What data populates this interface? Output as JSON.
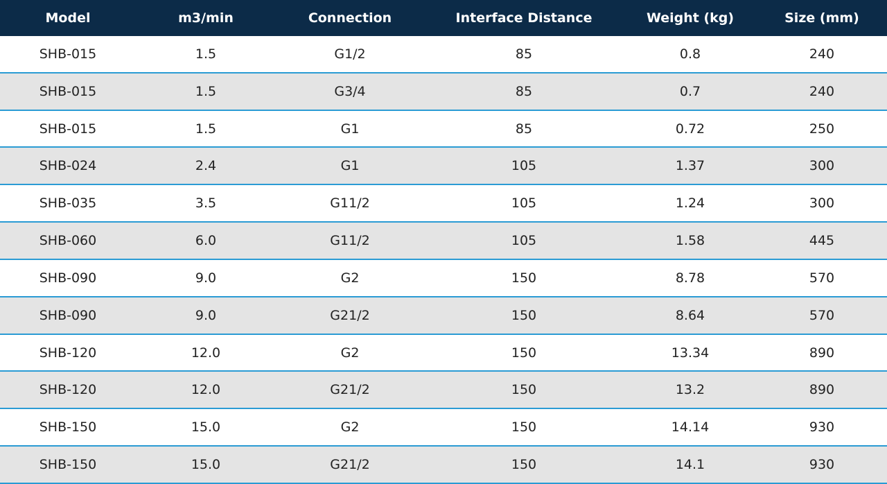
{
  "table": {
    "header": [
      "Model",
      "m3/min",
      "Connection",
      "Interface Distance",
      "Weight (kg)",
      "Size (mm)"
    ],
    "rows": [
      [
        "SHB-015",
        "1.5",
        "G1/2",
        "85",
        "0.8",
        "240"
      ],
      [
        "SHB-015",
        "1.5",
        "G3/4",
        "85",
        "0.7",
        "240"
      ],
      [
        "SHB-015",
        "1.5",
        "G1",
        "85",
        "0.72",
        "250"
      ],
      [
        "SHB-024",
        "2.4",
        "G1",
        "105",
        "1.37",
        "300"
      ],
      [
        "SHB-035",
        "3.5",
        "G11/2",
        "105",
        "1.24",
        "300"
      ],
      [
        "SHB-060",
        "6.0",
        "G11/2",
        "105",
        "1.58",
        "445"
      ],
      [
        "SHB-090",
        "9.0",
        "G2",
        "150",
        "8.78",
        "570"
      ],
      [
        "SHB-090",
        "9.0",
        "G21/2",
        "150",
        "8.64",
        "570"
      ],
      [
        "SHB-120",
        "12.0",
        "G2",
        "150",
        "13.34",
        "890"
      ],
      [
        "SHB-120",
        "12.0",
        "G21/2",
        "150",
        "13.2",
        "890"
      ],
      [
        "SHB-150",
        "15.0",
        "G2",
        "150",
        "14.14",
        "930"
      ],
      [
        "SHB-150",
        "15.0",
        "G21/2",
        "150",
        "14.1",
        "930"
      ]
    ]
  }
}
